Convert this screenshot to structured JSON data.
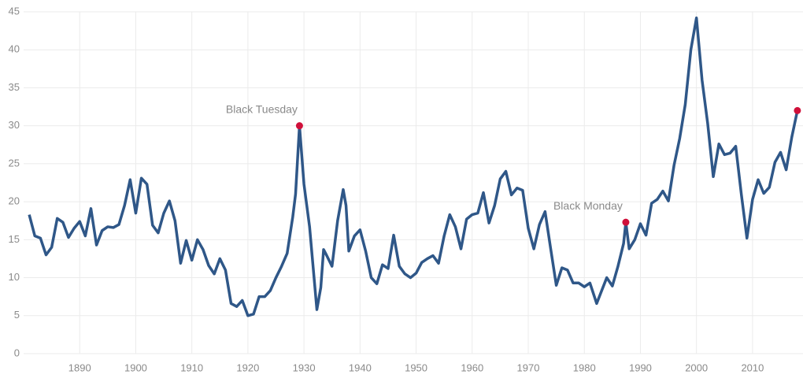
{
  "chart_data": {
    "type": "line",
    "x": [
      1881,
      1882,
      1883,
      1884,
      1885,
      1886,
      1887,
      1888,
      1889,
      1890,
      1891,
      1892,
      1893,
      1894,
      1895,
      1896,
      1897,
      1898,
      1899,
      1900,
      1901,
      1902,
      1903,
      1904,
      1905,
      1906,
      1907,
      1908,
      1909,
      1910,
      1911,
      1912,
      1913,
      1914,
      1915,
      1916,
      1917,
      1918,
      1919,
      1920,
      1921,
      1922,
      1923,
      1924,
      1925,
      1926,
      1927,
      1928,
      1928.5,
      1929.2,
      1930,
      1931,
      1932.3,
      1933,
      1933.5,
      1934,
      1935,
      1936,
      1937,
      1937.5,
      1938,
      1939,
      1940,
      1941,
      1942,
      1943,
      1944,
      1945,
      1946,
      1947,
      1948,
      1949,
      1950,
      1951,
      1952,
      1953,
      1954,
      1955,
      1956,
      1957,
      1958,
      1959,
      1960,
      1961,
      1962,
      1963,
      1964,
      1965,
      1966,
      1967,
      1968,
      1969,
      1970,
      1971,
      1972,
      1973,
      1974,
      1975,
      1976,
      1977,
      1978,
      1979,
      1980,
      1981,
      1982.2,
      1984,
      1985,
      1986,
      1987,
      1987.4,
      1988,
      1989,
      1990,
      1991,
      1992,
      1993,
      1994,
      1995,
      1996,
      1997,
      1998,
      1999,
      2000,
      2001,
      2002,
      2003,
      2004,
      2005,
      2006,
      2007,
      2008,
      2009,
      2010,
      2011,
      2012,
      2013,
      2014,
      2015,
      2016,
      2017,
      2018
    ],
    "series": [
      {
        "color": "#2f5788",
        "values": [
          18.3,
          15.5,
          15.2,
          13.0,
          14.0,
          17.8,
          17.3,
          15.3,
          16.5,
          17.4,
          15.5,
          19.1,
          14.3,
          16.2,
          16.7,
          16.6,
          17.0,
          19.5,
          22.9,
          18.5,
          23.1,
          22.3,
          16.9,
          15.9,
          18.5,
          20.1,
          17.5,
          11.9,
          14.9,
          12.3,
          15.0,
          13.7,
          11.6,
          10.5,
          12.5,
          11.0,
          6.6,
          6.2,
          7.0,
          5.0,
          5.2,
          7.5,
          7.5,
          8.3,
          10.0,
          11.5,
          13.2,
          18.0,
          21.0,
          30.0,
          22.3,
          16.7,
          5.8,
          8.7,
          13.7,
          13.0,
          11.5,
          17.5,
          21.6,
          19.5,
          13.5,
          15.5,
          16.3,
          13.5,
          10.0,
          9.2,
          11.7,
          11.2,
          15.6,
          11.5,
          10.5,
          10.0,
          10.6,
          12.0,
          12.5,
          12.9,
          11.9,
          15.5,
          18.3,
          16.7,
          13.8,
          17.7,
          18.3,
          18.5,
          21.2,
          17.2,
          19.5,
          23.0,
          24.0,
          20.9,
          21.8,
          21.5,
          16.5,
          13.8,
          17.0,
          18.7,
          13.8,
          9.0,
          11.3,
          11.0,
          9.3,
          9.3,
          8.8,
          9.3,
          6.6,
          10.0,
          8.9,
          11.5,
          14.5,
          17.3,
          13.8,
          15.0,
          17.1,
          15.6,
          19.8,
          20.3,
          21.4,
          20.1,
          24.8,
          28.3,
          32.8,
          40.0,
          44.2,
          36.0,
          30.3,
          23.3,
          27.6,
          26.2,
          26.4,
          27.3,
          21.0,
          15.2,
          20.3,
          22.9,
          21.1,
          21.9,
          25.2,
          26.5,
          24.2,
          28.5,
          32.0
        ]
      }
    ],
    "annotations": [
      {
        "label": "Black Tuesday",
        "x": 1929.2,
        "y": 30.0
      },
      {
        "label": "Black Monday",
        "x": 1987.4,
        "y": 17.3
      },
      {
        "x": 2018,
        "y": 32.0
      }
    ],
    "marker_color": "#d0103a",
    "xlim": [
      1880,
      2019
    ],
    "xticks": [
      1890,
      1900,
      1910,
      1920,
      1930,
      1940,
      1950,
      1960,
      1970,
      1980,
      1990,
      2000,
      2010
    ],
    "ylim": [
      0,
      45
    ],
    "yticks": [
      0,
      5,
      10,
      15,
      20,
      25,
      30,
      35,
      40,
      45
    ],
    "grid": true
  }
}
